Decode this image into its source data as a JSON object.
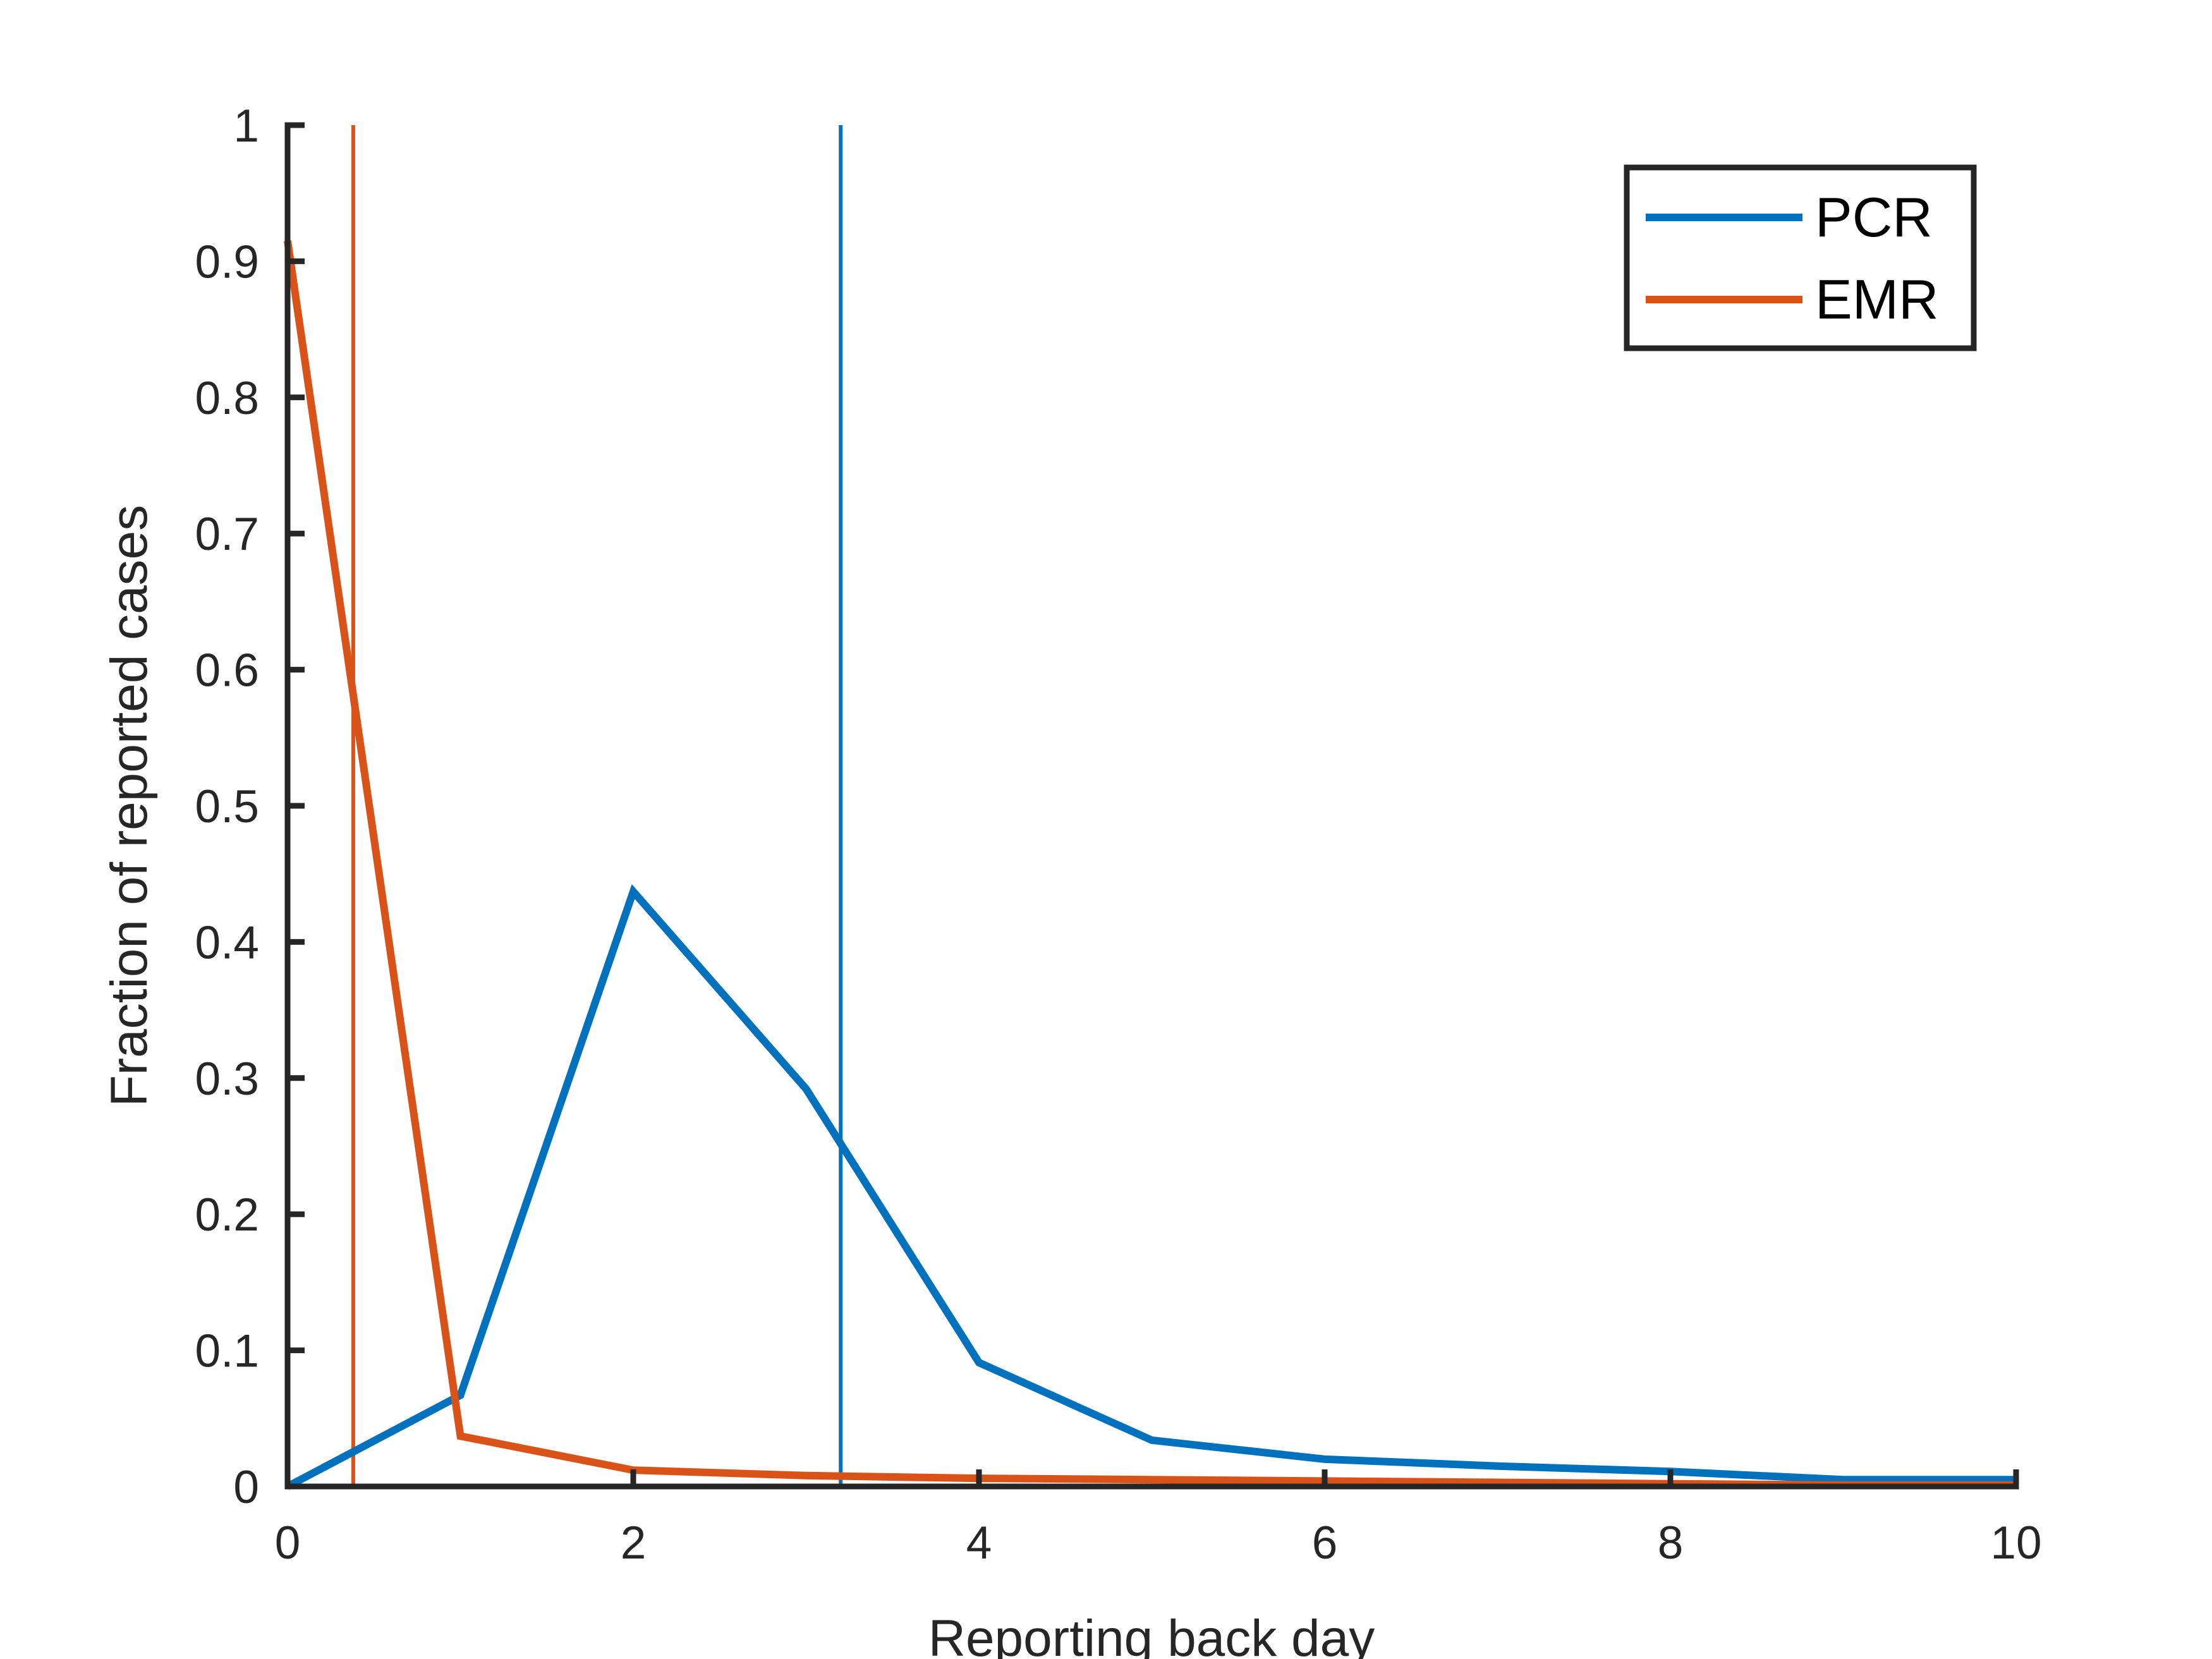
{
  "chart_data": {
    "type": "line",
    "title": "",
    "xlabel": "Reporting back day",
    "ylabel": "Fraction of reported cases",
    "xlim": [
      0,
      10
    ],
    "ylim": [
      0,
      1
    ],
    "xticks": [
      0,
      2,
      4,
      6,
      8,
      10
    ],
    "yticks": [
      0,
      0.1,
      0.2,
      0.3,
      0.4,
      0.5,
      0.6,
      0.7,
      0.8,
      0.9,
      1
    ],
    "xtick_labels": [
      "0",
      "2",
      "4",
      "6",
      "8",
      "10"
    ],
    "ytick_labels": [
      "0",
      "0.1",
      "0.2",
      "0.3",
      "0.4",
      "0.5",
      "0.6",
      "0.7",
      "0.8",
      "0.9",
      "1"
    ],
    "grid": false,
    "legend_position": "top-right",
    "x": [
      0,
      1,
      2,
      3,
      4,
      5,
      6,
      7,
      8,
      9,
      10
    ],
    "series": [
      {
        "name": "PCR",
        "color": "#0072BD",
        "values": [
          0.0,
          0.067,
          0.437,
          0.292,
          0.091,
          0.034,
          0.02,
          0.015,
          0.011,
          0.005,
          0.005
        ],
        "mean_line": 3.2
      },
      {
        "name": "EMR",
        "color": "#D95319",
        "values": [
          0.915,
          0.037,
          0.012,
          0.008,
          0.006,
          0.005,
          0.004,
          0.003,
          0.002,
          0.001,
          0.001
        ],
        "mean_line": 0.38
      }
    ]
  }
}
